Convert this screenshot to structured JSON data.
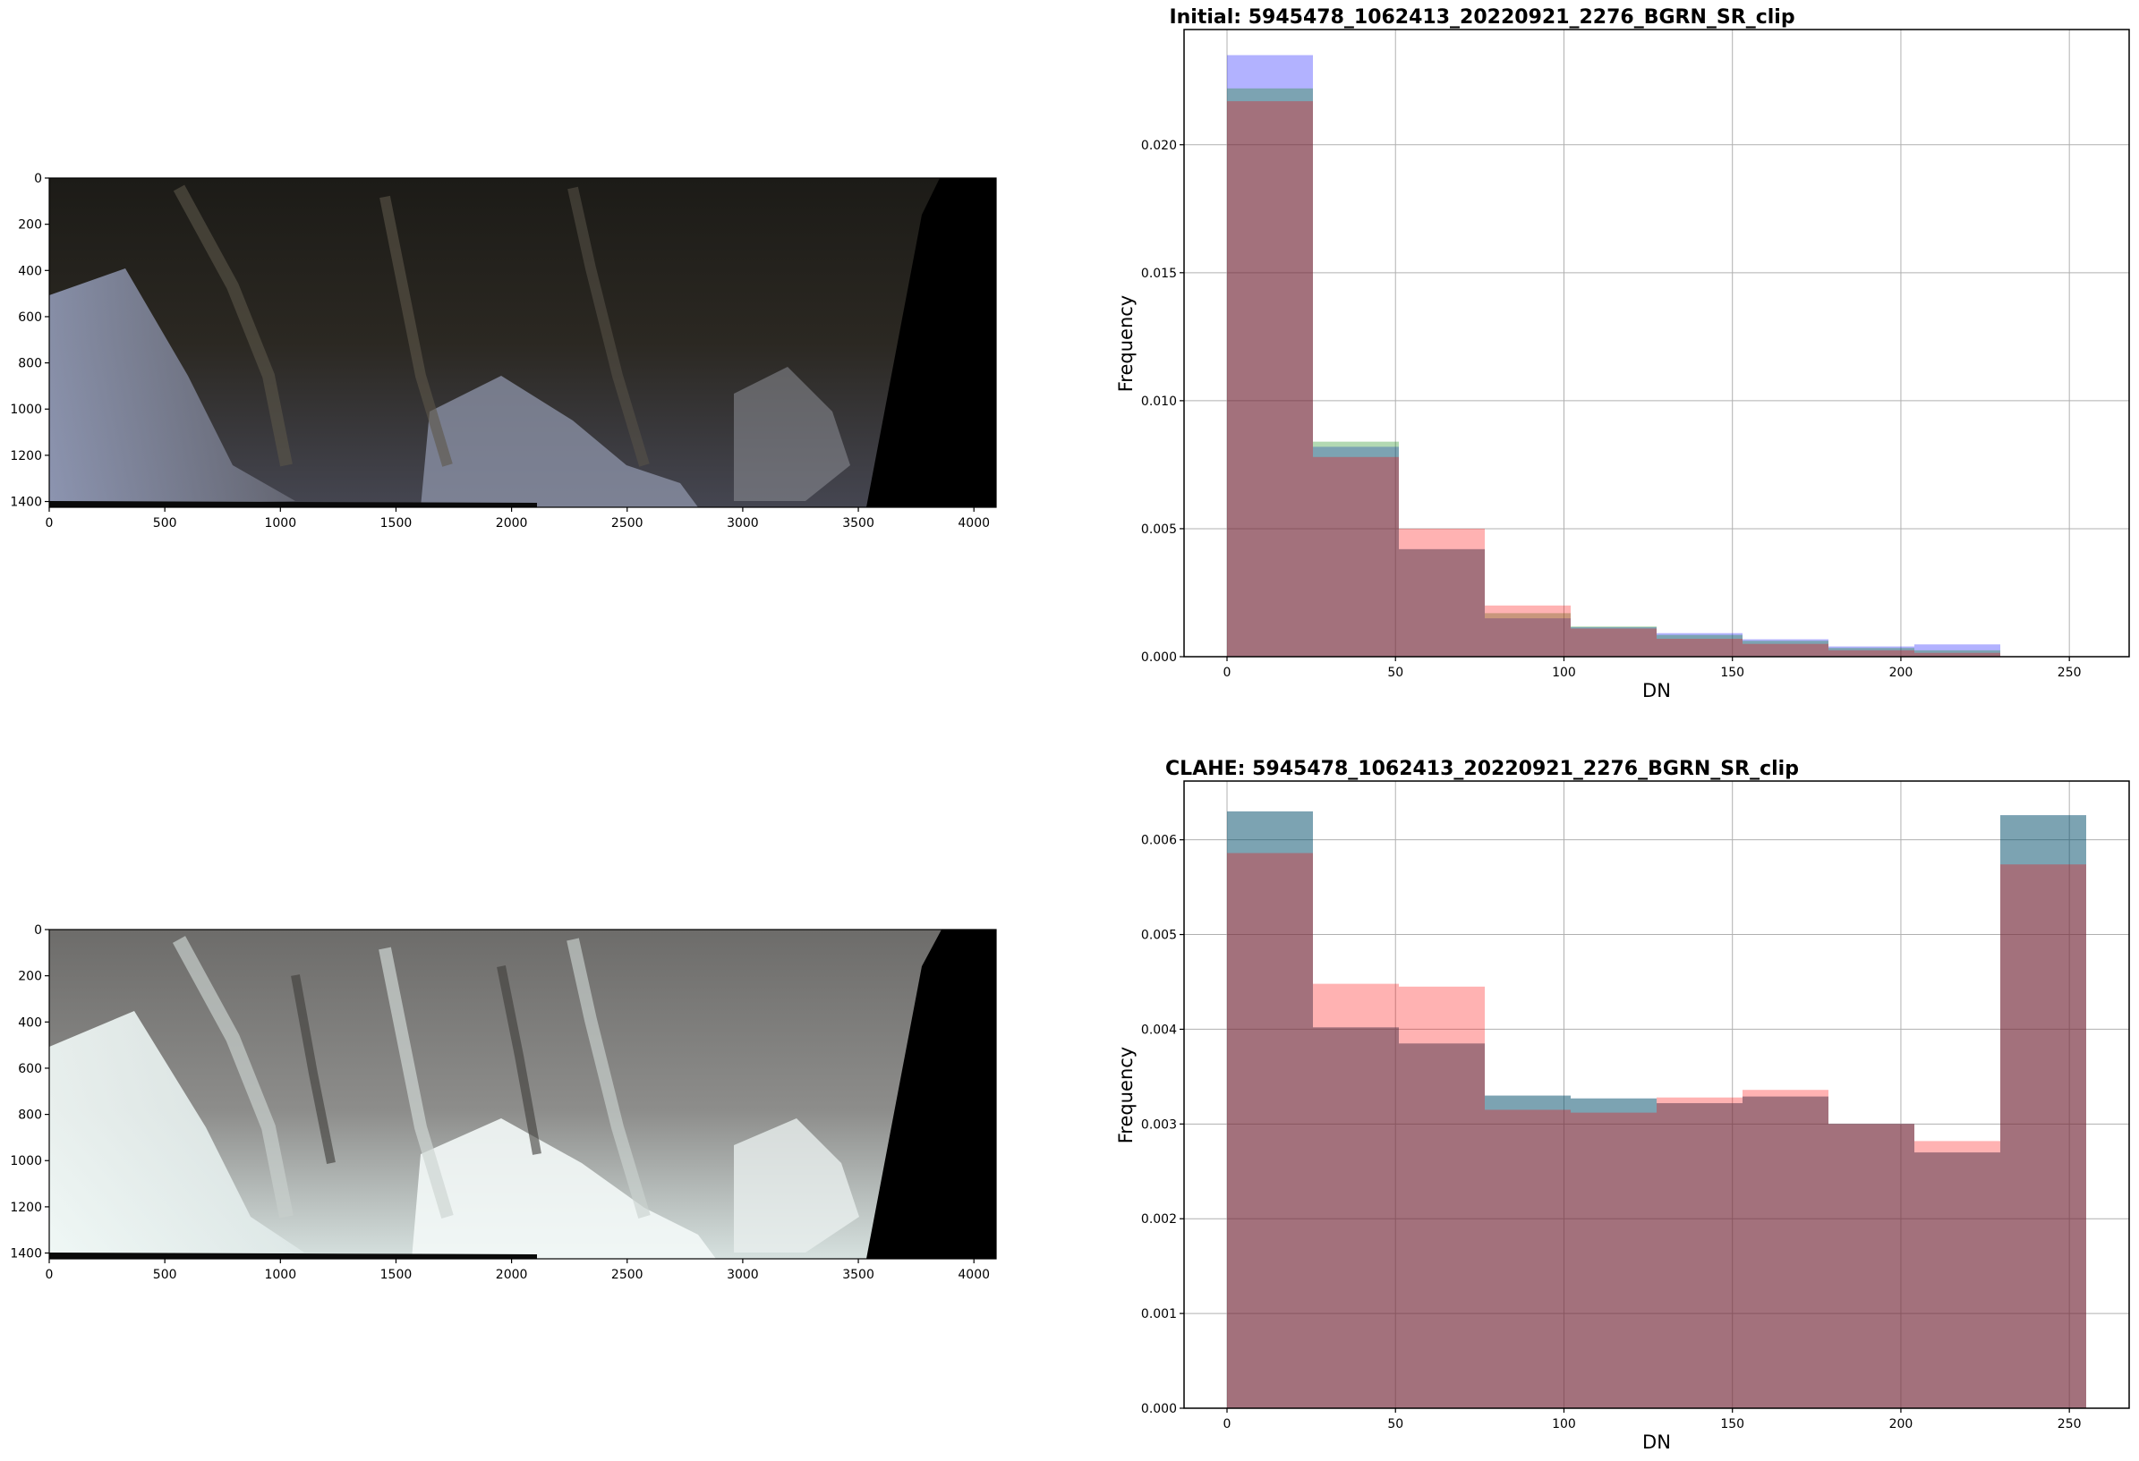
{
  "chart_data": [
    {
      "type": "image",
      "panel": "initial-image",
      "xticks": [
        0,
        500,
        1000,
        1500,
        2000,
        2500,
        3000,
        3500,
        4000
      ],
      "yticks": [
        0,
        200,
        400,
        600,
        800,
        1000,
        1200,
        1400
      ],
      "xlim": [
        0,
        4096
      ],
      "ylim": [
        1425,
        0
      ],
      "tone": "dark"
    },
    {
      "type": "histogram",
      "panel": "initial-histogram",
      "title": "Initial: 5945478_1062413_20220921_2276_BGRN_SR_clip",
      "xlabel": "DN",
      "ylabel": "Frequency",
      "xlim": [
        -12.75,
        267.75
      ],
      "ylim": [
        0,
        0.0245
      ],
      "xticks": [
        0,
        50,
        100,
        150,
        200,
        250
      ],
      "yticks": [
        "0.000",
        "0.005",
        "0.010",
        "0.015",
        "0.020"
      ],
      "grid": true,
      "bin_edges": [
        0,
        25.5,
        51,
        76.5,
        102,
        127.5,
        153,
        178.5,
        204,
        229.5,
        255
      ],
      "series": [
        {
          "color": "#0000ff",
          "alpha": 0.3,
          "values": [
            0.0235,
            0.0082,
            0.0042,
            0.0015,
            0.00115,
            0.00092,
            0.00068,
            0.0004,
            0.00048,
            0.0
          ]
        },
        {
          "color": "#008000",
          "alpha": 0.3,
          "values": [
            0.0222,
            0.0084,
            0.0042,
            0.0017,
            0.00118,
            0.00085,
            0.00062,
            0.00034,
            0.00025,
            0.0
          ]
        },
        {
          "color": "#ff0000",
          "alpha": 0.3,
          "values": [
            0.0217,
            0.0078,
            0.005,
            0.002,
            0.0011,
            0.0007,
            0.0005,
            0.00025,
            0.00015,
            0.0
          ]
        }
      ]
    },
    {
      "type": "image",
      "panel": "clahe-image",
      "xticks": [
        0,
        500,
        1000,
        1500,
        2000,
        2500,
        3000,
        3500,
        4000
      ],
      "yticks": [
        0,
        200,
        400,
        600,
        800,
        1000,
        1200,
        1400
      ],
      "xlim": [
        0,
        4096
      ],
      "ylim": [
        1425,
        0
      ],
      "tone": "bright"
    },
    {
      "type": "histogram",
      "panel": "clahe-histogram",
      "title": "CLAHE: 5945478_1062413_20220921_2276_BGRN_SR_clip",
      "xlabel": "DN",
      "ylabel": "Frequency",
      "xlim": [
        -12.75,
        267.75
      ],
      "ylim": [
        0,
        0.00662
      ],
      "xticks": [
        0,
        50,
        100,
        150,
        200,
        250
      ],
      "yticks": [
        "0.000",
        "0.001",
        "0.002",
        "0.003",
        "0.004",
        "0.005",
        "0.006"
      ],
      "grid": true,
      "bin_edges": [
        0,
        25.5,
        51,
        76.5,
        102,
        127.5,
        153,
        178.5,
        204,
        229.5,
        255
      ],
      "series": [
        {
          "color": "#0000ff",
          "alpha": 0.3,
          "values": [
            0.0063,
            0.00402,
            0.00385,
            0.0033,
            0.00327,
            0.00322,
            0.00329,
            0.003,
            0.0027,
            0.00626
          ]
        },
        {
          "color": "#008000",
          "alpha": 0.3,
          "values": [
            0.0063,
            0.00402,
            0.00385,
            0.0033,
            0.00327,
            0.00322,
            0.00329,
            0.003,
            0.0027,
            0.00626
          ]
        },
        {
          "color": "#ff0000",
          "alpha": 0.3,
          "values": [
            0.00586,
            0.00448,
            0.00445,
            0.00315,
            0.00312,
            0.00328,
            0.00336,
            0.003,
            0.00282,
            0.00574
          ]
        }
      ]
    }
  ]
}
